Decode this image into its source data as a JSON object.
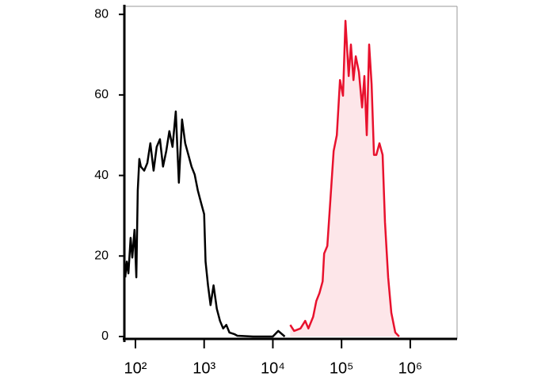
{
  "chart_data": {
    "type": "histogram-overlay",
    "log_x": true,
    "xlim": [
      69,
      4800000
    ],
    "ylim": [
      0,
      82
    ],
    "xticks": [
      {
        "value": 100,
        "label": "10²"
      },
      {
        "value": 1000,
        "label": "10³"
      },
      {
        "value": 10000,
        "label": "10⁴"
      },
      {
        "value": 100000,
        "label": "10⁵"
      },
      {
        "value": 1000000,
        "label": "10⁶"
      }
    ],
    "yticks": [
      0,
      20,
      40,
      60,
      80
    ],
    "series": [
      {
        "color": "#000000",
        "x": [
          71,
          75,
          79,
          85,
          90,
          97,
          103,
          108,
          114,
          120,
          134,
          149,
          165,
          184,
          204,
          227,
          252,
          281,
          312,
          347,
          386,
          429,
          477,
          530,
          589,
          655,
          728,
          809,
          899,
          1000,
          1050,
          1140,
          1240,
          1370,
          1530,
          1700,
          1890,
          2100,
          2330,
          2740,
          3040,
          5160,
          10000,
          12000,
          14900
        ],
        "values": [
          14.7,
          18.6,
          15.7,
          24.5,
          19.6,
          26.5,
          14.7,
          36.3,
          44.1,
          42.2,
          41.2,
          43.1,
          48.0,
          41.2,
          47.1,
          49.0,
          42.2,
          46.1,
          51.0,
          47.1,
          55.9,
          38.2,
          53.9,
          48.0,
          45.1,
          42.2,
          40.2,
          36.3,
          33.3,
          30.4,
          18.6,
          12.7,
          7.8,
          12.7,
          6.9,
          3.9,
          2.0,
          2.9,
          1.0,
          0.6,
          0.2,
          0,
          0,
          1.4,
          0
        ]
      },
      {
        "color": "#e8112d",
        "fill": "#fde6e9",
        "x": [
          17900,
          20400,
          25200,
          29600,
          32900,
          38600,
          42900,
          47700,
          53000,
          55800,
          62100,
          69000,
          76700,
          85300,
          94800,
          105000,
          114000,
          127000,
          137000,
          149000,
          161000,
          179000,
          199000,
          215000,
          233000,
          252000,
          274000,
          296000,
          321000,
          356000,
          396000,
          429000,
          477000,
          530000,
          605000,
          690000
        ],
        "values": [
          2.9,
          1.4,
          2.0,
          3.9,
          2.0,
          4.9,
          8.8,
          10.8,
          13.7,
          20.6,
          22.5,
          34.3,
          46.1,
          50.0,
          63.7,
          59.8,
          78.4,
          64.7,
          72.5,
          63.7,
          69.6,
          65.7,
          56.9,
          64.7,
          50.0,
          72.5,
          62.7,
          45.1,
          45.1,
          48.0,
          45.1,
          28.4,
          14.7,
          5.9,
          1.0,
          0
        ]
      }
    ]
  }
}
